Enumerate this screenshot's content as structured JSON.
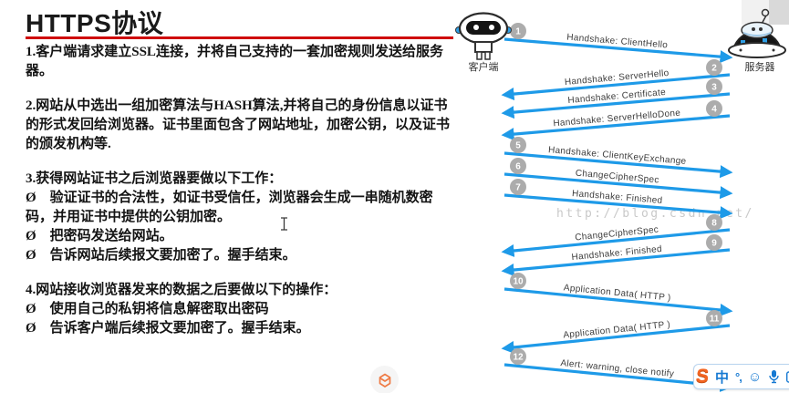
{
  "title": "HTTPS协议",
  "colors": {
    "divider_red": "#cf0a0a",
    "arrow_blue": "#1e9ae8",
    "badge_gray": "#acacac",
    "watermark_gray": "#c9c9c9",
    "ime_blue": "#1679d2",
    "ime_orange": "#f26522"
  },
  "article": {
    "paragraphs": [
      [
        "1.客户端请求建立SSL连接，并将自己支持的一套加密规则发送给服务器。"
      ],
      [
        "2.网站从中选出一组加密算法与HASH算法,并将自己的身份信息以证书的形式发回给浏览器。证书里面包含了网站地址，加密公钥，以及证书的颁发机构等."
      ],
      [
        "3.获得网站证书之后浏览器要做以下工作：",
        "Ø　验证证书的合法性，如证书受信任，浏览器会生成一串随机数密码，并用证书中提供的公钥加密。",
        "Ø　把密码发送给网站。",
        "Ø　告诉网站后续报文要加密了。握手结束。"
      ],
      [
        "4.网站接收浏览器发来的数据之后要做以下的操作：",
        "Ø　使用自己的私钥将信息解密取出密码",
        "Ø　告诉客户端后续报文要加密了。握手结束。"
      ]
    ]
  },
  "diagram": {
    "client_label": "客户端",
    "server_label": "服务器",
    "watermark": "http://blog.csdn.net/",
    "messages": [
      {
        "num": "1",
        "label": "Handshake: ClientHello",
        "dir": "ltr"
      },
      {
        "num": "2",
        "label": "Handshake: ServerHello",
        "dir": "rtl"
      },
      {
        "num": "3",
        "label": "Handshake: Certificate",
        "dir": "rtl"
      },
      {
        "num": "4",
        "label": "Handshake: ServerHelloDone",
        "dir": "rtl"
      },
      {
        "num": "5",
        "label": "Handshake: ClientKeyExchange",
        "dir": "ltr"
      },
      {
        "num": "6",
        "label": "ChangeCipherSpec",
        "dir": "ltr"
      },
      {
        "num": "7",
        "label": "Handshake: Finished",
        "dir": "ltr"
      },
      {
        "num": "8",
        "label": "ChangeCipherSpec",
        "dir": "rtl"
      },
      {
        "num": "9",
        "label": "Handshake: Finished",
        "dir": "rtl"
      },
      {
        "num": "10",
        "label": "Application Data( HTTP )",
        "dir": "ltr"
      },
      {
        "num": "11",
        "label": "Application Data( HTTP )",
        "dir": "rtl"
      },
      {
        "num": "12",
        "label": "Alert: warning, close notify",
        "dir": "ltr"
      }
    ]
  },
  "ime_bar": {
    "logo": "S",
    "mode_label": "中",
    "punct_label": "°,",
    "smiley_glyph": "☺"
  }
}
